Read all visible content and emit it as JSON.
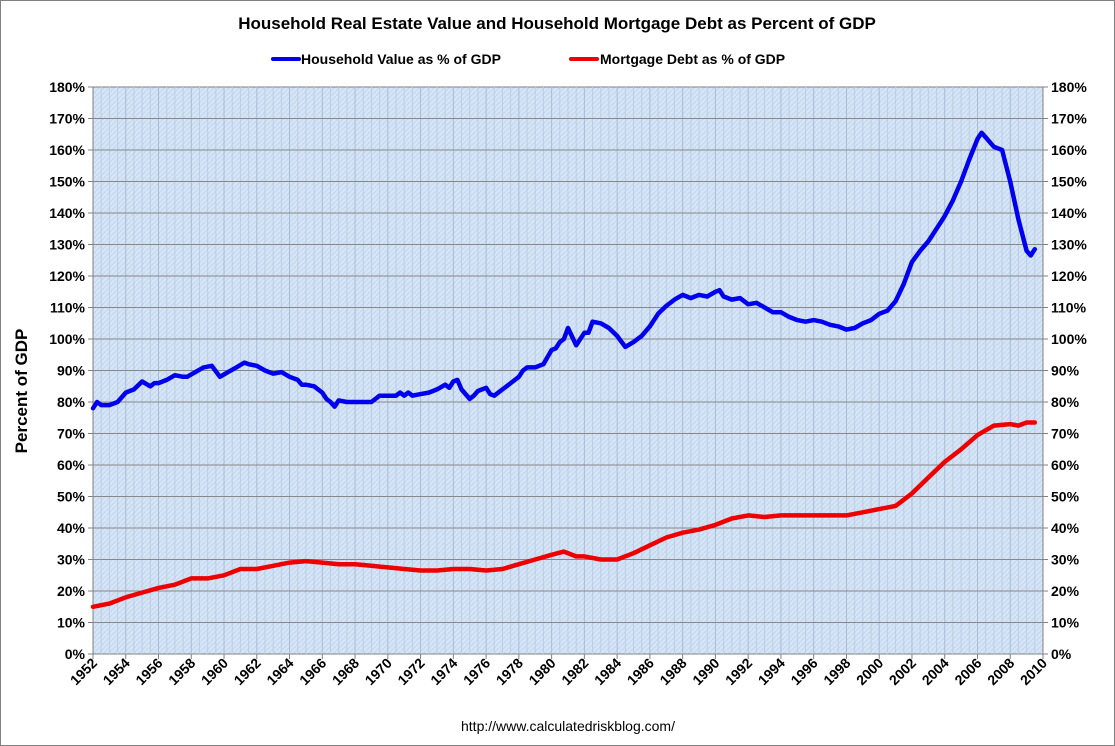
{
  "chart_data": {
    "type": "line",
    "title": "Household Real Estate Value and Household Mortgage Debt as Percent of GDP",
    "ylabel": "Percent of GDP",
    "xlabel": "",
    "source": "http://www.calculatedriskblog.com/",
    "xlim": [
      1952,
      2010
    ],
    "ylim": [
      0,
      180
    ],
    "y_ticks": [
      "0%",
      "10%",
      "20%",
      "30%",
      "40%",
      "50%",
      "60%",
      "70%",
      "80%",
      "90%",
      "100%",
      "110%",
      "120%",
      "130%",
      "140%",
      "150%",
      "160%",
      "170%",
      "180%"
    ],
    "x_ticks": [
      "1952",
      "1954",
      "1956",
      "1958",
      "1960",
      "1962",
      "1964",
      "1966",
      "1968",
      "1970",
      "1972",
      "1974",
      "1976",
      "1978",
      "1980",
      "1982",
      "1984",
      "1986",
      "1988",
      "1990",
      "1992",
      "1994",
      "1996",
      "1998",
      "2000",
      "2002",
      "2004",
      "2006",
      "2008",
      "2010"
    ],
    "legend_position": "top-center",
    "grid": true,
    "series": [
      {
        "name": "Household Value as % of GDP",
        "color": "#0000ee",
        "x": [
          1952.0,
          1952.25,
          1952.5,
          1953.0,
          1953.5,
          1954.0,
          1954.5,
          1955.0,
          1955.5,
          1955.75,
          1956.0,
          1956.5,
          1957.0,
          1957.5,
          1957.75,
          1958.25,
          1958.75,
          1959.25,
          1959.75,
          1960.25,
          1960.75,
          1961.25,
          1961.5,
          1962.0,
          1962.5,
          1962.75,
          1963.0,
          1963.5,
          1964.0,
          1964.5,
          1964.75,
          1965.0,
          1965.5,
          1966.0,
          1966.25,
          1966.5,
          1966.75,
          1967.0,
          1967.5,
          1968.0,
          1968.5,
          1969.0,
          1969.5,
          1970.0,
          1970.5,
          1970.75,
          1971.0,
          1971.25,
          1971.5,
          1972.0,
          1972.5,
          1973.0,
          1973.5,
          1973.75,
          1974.0,
          1974.25,
          1974.5,
          1975.0,
          1975.25,
          1975.5,
          1976.0,
          1976.25,
          1976.5,
          1977.0,
          1977.5,
          1978.0,
          1978.25,
          1978.5,
          1979.0,
          1979.5,
          1980.0,
          1980.25,
          1980.5,
          1980.75,
          1981.0,
          1981.5,
          1982.0,
          1982.25,
          1982.5,
          1983.0,
          1983.5,
          1984.0,
          1984.5,
          1985.0,
          1985.5,
          1986.0,
          1986.5,
          1987.0,
          1987.5,
          1988.0,
          1988.5,
          1989.0,
          1989.5,
          1990.0,
          1990.25,
          1990.5,
          1991.0,
          1991.5,
          1992.0,
          1992.5,
          1993.0,
          1993.5,
          1994.0,
          1994.5,
          1995.0,
          1995.5,
          1996.0,
          1996.5,
          1997.0,
          1997.5,
          1998.0,
          1998.5,
          1999.0,
          1999.5,
          2000.0,
          2000.5,
          2001.0,
          2001.5,
          2002.0,
          2002.5,
          2003.0,
          2003.5,
          2004.0,
          2004.5,
          2005.0,
          2005.5,
          2006.0,
          2006.25,
          2006.5,
          2007.0,
          2007.5,
          2008.0,
          2008.5,
          2009.0,
          2009.25,
          2009.5
        ],
        "values": [
          78,
          80,
          79,
          79,
          80,
          83,
          84,
          86.5,
          85,
          86,
          86,
          87,
          88.5,
          88,
          88,
          89.5,
          91,
          91.5,
          88,
          89.5,
          91,
          92.5,
          92,
          91.5,
          90,
          89.5,
          89,
          89.5,
          88,
          87,
          85.5,
          85.5,
          85,
          83,
          81,
          80,
          78.5,
          80.5,
          80,
          80,
          80,
          80,
          82,
          82,
          82,
          83,
          82,
          83,
          82,
          82.5,
          83,
          84,
          85.5,
          84.5,
          86.5,
          87,
          84,
          81,
          82,
          83.5,
          84.5,
          82.5,
          82,
          84,
          86,
          88,
          90,
          91,
          91,
          92,
          96.5,
          97,
          99,
          100,
          103.5,
          98,
          102,
          102,
          105.5,
          105,
          103.5,
          101,
          97.5,
          99,
          101,
          104,
          108,
          110.5,
          112.5,
          114,
          113,
          114,
          113.5,
          115,
          115.5,
          113.5,
          112.5,
          113,
          111,
          111.5,
          110,
          108.5,
          108.5,
          107,
          106,
          105.5,
          106,
          105.5,
          104.5,
          104,
          103,
          103.5,
          105,
          106,
          108,
          109,
          112,
          117.5,
          124.5,
          128,
          131,
          135,
          139,
          144,
          150,
          157,
          163.5,
          165.5,
          164,
          161,
          160,
          150,
          138,
          128,
          126.5,
          128.5
        ]
      },
      {
        "name": "Mortgage Debt as % of GDP",
        "color": "#ee0000",
        "x": [
          1952,
          1953,
          1954,
          1955,
          1956,
          1957,
          1958,
          1959,
          1960,
          1961,
          1962,
          1963,
          1964,
          1965,
          1966,
          1967,
          1968,
          1969,
          1970,
          1971,
          1972,
          1973,
          1974,
          1975,
          1976,
          1977,
          1978,
          1979,
          1980,
          1980.75,
          1981.5,
          1982,
          1983,
          1984,
          1985,
          1986,
          1987,
          1988,
          1989,
          1990,
          1991,
          1992,
          1993,
          1994,
          1995,
          1996,
          1997,
          1998,
          1999,
          2000,
          2001,
          2002,
          2003,
          2004,
          2005,
          2006,
          2007,
          2008,
          2008.5,
          2009,
          2009.5
        ],
        "values": [
          15,
          16,
          18,
          19.5,
          21,
          22,
          24,
          24,
          25,
          27,
          27,
          28,
          29,
          29.5,
          29,
          28.5,
          28.5,
          28,
          27.5,
          27,
          26.5,
          26.5,
          27,
          27,
          26.5,
          27,
          28.5,
          30,
          31.5,
          32.5,
          31,
          31,
          30,
          30,
          32,
          34.5,
          37,
          38.5,
          39.5,
          41,
          43,
          44,
          43.5,
          44,
          44,
          44,
          44,
          44,
          45,
          46,
          47,
          51,
          56,
          61,
          65,
          69.5,
          72.5,
          73,
          72.5,
          73.5,
          73.5
        ]
      }
    ]
  }
}
